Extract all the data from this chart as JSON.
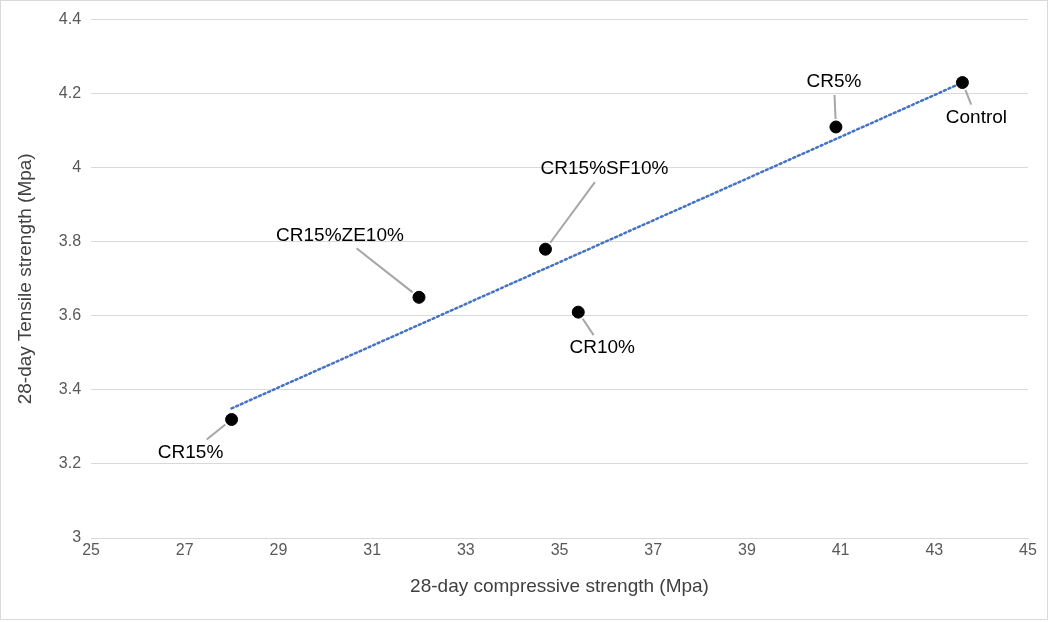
{
  "chart_data": {
    "type": "scatter",
    "xlabel": "28-day compressive strength (Mpa)",
    "ylabel": "28-day Tensile strength (Mpa)",
    "x": [
      43.6,
      40.9,
      34.7,
      35.4,
      32.0,
      28.0
    ],
    "series": [
      {
        "color": "#000000",
        "values": [
          4.23,
          4.11,
          3.78,
          3.61,
          3.65,
          3.32
        ]
      },
      {
        "type": "line",
        "color": "#4472c4",
        "line_style": "dotted",
        "marker": "none",
        "x": [
          28.0,
          43.6
        ],
        "values": [
          3.35,
          4.23
        ]
      }
    ],
    "annotations": [
      {
        "text": "Control",
        "x": 43.6,
        "y": 4.23
      },
      {
        "text": "CR5%",
        "x": 40.9,
        "y": 4.11
      },
      {
        "text": "CR15%SF10%",
        "x": 34.7,
        "y": 3.78
      },
      {
        "text": "CR10%",
        "x": 35.4,
        "y": 3.61
      },
      {
        "text": "CR15%ZE10%",
        "x": 32.0,
        "y": 3.65
      },
      {
        "text": "CR15%",
        "x": 28.0,
        "y": 3.32
      }
    ],
    "xlim": [
      25,
      45
    ],
    "xticks": [
      25,
      27,
      29,
      31,
      33,
      35,
      37,
      39,
      41,
      43,
      45
    ],
    "ylim": [
      3,
      4.4
    ],
    "yticks": [
      3,
      3.2,
      3.4,
      3.6,
      3.8,
      4,
      4.2,
      4.4
    ],
    "grid": "y",
    "legend": false,
    "marker": "circle"
  }
}
